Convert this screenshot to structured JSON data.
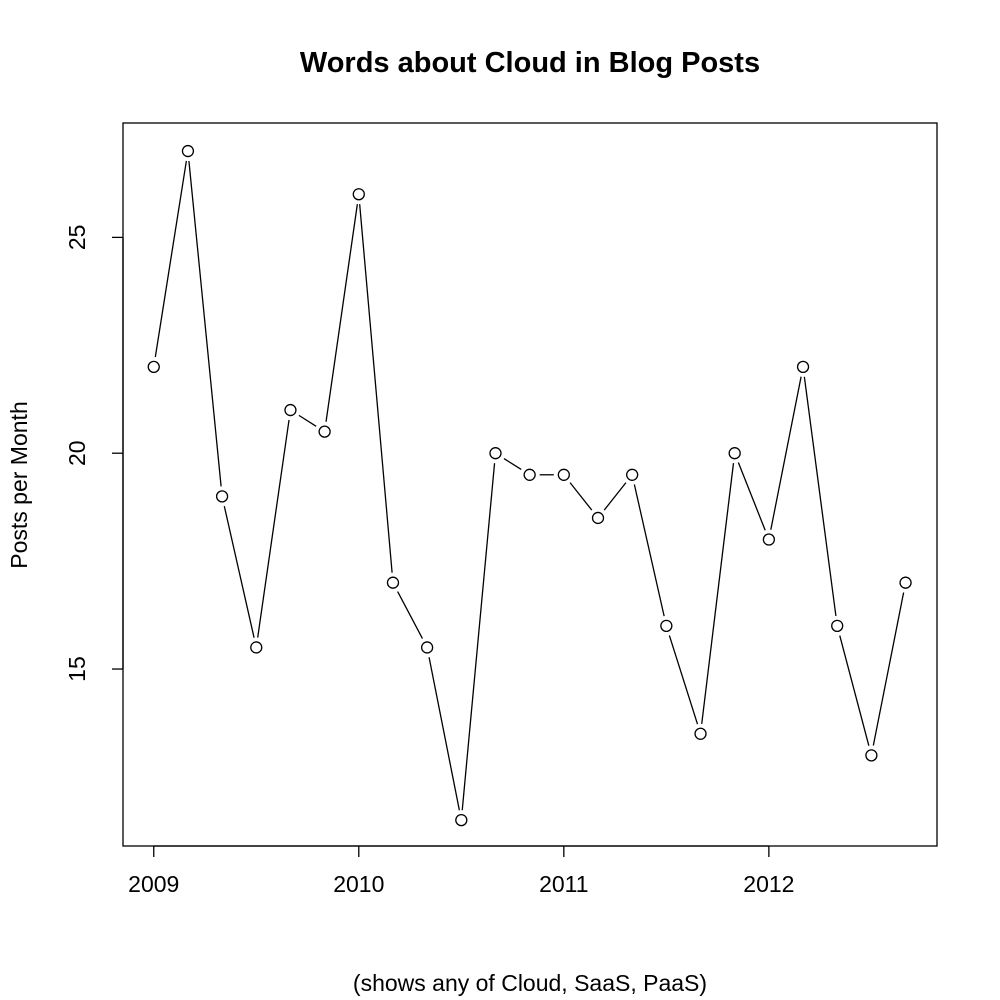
{
  "chart_data": {
    "type": "line",
    "title": "Words about Cloud in Blog Posts",
    "xlabel": "(shows any of Cloud, SaaS, PaaS)",
    "ylabel": "Posts per Month",
    "x_ticks": [
      2009,
      2010,
      2011,
      2012
    ],
    "y_ticks": [
      15,
      20,
      25
    ],
    "xlim": [
      2008.85,
      2012.82
    ],
    "ylim": [
      10.9,
      27.65
    ],
    "grid": false,
    "x": [
      2009.0,
      2009.1667,
      2009.3333,
      2009.5,
      2009.6667,
      2009.8333,
      2010.0,
      2010.1667,
      2010.3333,
      2010.5,
      2010.6667,
      2010.8333,
      2011.0,
      2011.1667,
      2011.3333,
      2011.5,
      2011.6667,
      2011.8333,
      2012.0,
      2012.1667,
      2012.3333,
      2012.5,
      2012.6667
    ],
    "values": [
      22,
      27,
      19,
      15.5,
      21,
      20.5,
      26,
      17,
      15.5,
      11.5,
      20,
      19.5,
      19.5,
      18.5,
      19.5,
      16,
      13.5,
      20,
      18,
      22,
      16,
      13,
      17
    ]
  }
}
